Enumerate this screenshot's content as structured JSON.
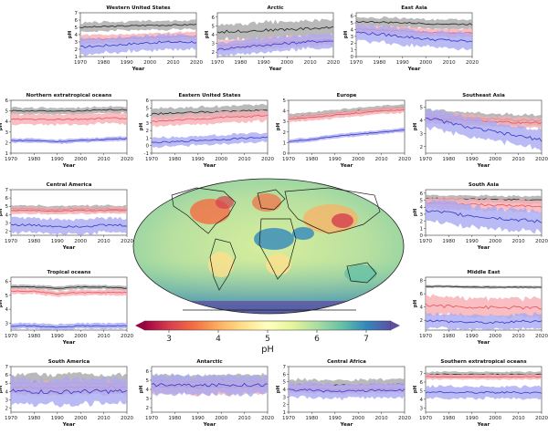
{
  "colors": {
    "black_line": "#222222",
    "black_band": "#a8a8a8",
    "red_line": "#e8505b",
    "red_band": "#f6aeb2",
    "blue_line": "#3535c8",
    "blue_band": "#a9a9f2"
  },
  "map": {
    "colorbar_label": "pH",
    "colorbar_ticks": [
      "3",
      "4",
      "5",
      "6",
      "7"
    ],
    "colorbar_min": 2.5,
    "colorbar_max": 7.5,
    "colormap": "Spectral"
  },
  "chart_data": [
    {
      "type": "line",
      "title": "Western United States",
      "xlabel": "Year",
      "ylabel": "pH",
      "x_ticks": [
        "1970",
        "1980",
        "1990",
        "2000",
        "2010",
        "2020"
      ],
      "y_ticks": [
        "1",
        "2",
        "3",
        "4",
        "5",
        "6",
        "7"
      ],
      "ylim": [
        1,
        7
      ],
      "xlim": [
        1970,
        2020
      ],
      "series": [
        {
          "style": "black",
          "values": [
            5.0,
            5.1,
            5.2,
            5.3,
            5.3,
            5.4
          ],
          "band": 0.6
        },
        {
          "style": "red",
          "values": [
            3.3,
            3.4,
            3.5,
            3.6,
            3.7,
            3.8
          ],
          "band": 0.6
        },
        {
          "style": "blue",
          "values": [
            2.3,
            2.5,
            2.7,
            2.9,
            3.0,
            3.0
          ],
          "band": 1.0
        }
      ]
    },
    {
      "type": "line",
      "title": "Arctic",
      "xlabel": "Year",
      "ylabel": "pH",
      "x_ticks": [
        "1970",
        "1980",
        "1990",
        "2000",
        "2010",
        "2020"
      ],
      "y_ticks": [
        "2",
        "3",
        "4",
        "5",
        "6"
      ],
      "ylim": [
        1.5,
        6.5
      ],
      "xlim": [
        1970,
        2020
      ],
      "series": [
        {
          "style": "black",
          "values": [
            4.3,
            4.4,
            4.5,
            4.6,
            4.7,
            4.8
          ],
          "band": 0.9
        },
        {
          "style": "red",
          "values": [
            2.7,
            2.9,
            3.0,
            3.2,
            3.3,
            3.4
          ],
          "band": 0.6
        },
        {
          "style": "blue",
          "values": [
            2.3,
            2.6,
            2.8,
            3.0,
            3.2,
            3.3
          ],
          "band": 0.8
        }
      ]
    },
    {
      "type": "line",
      "title": "East Asia",
      "xlabel": "Year",
      "ylabel": "pH",
      "x_ticks": [
        "1970",
        "1980",
        "1990",
        "2000",
        "2010",
        "2020"
      ],
      "y_ticks": [
        "0",
        "1",
        "2",
        "3",
        "4",
        "5",
        "6"
      ],
      "ylim": [
        0,
        6.5
      ],
      "xlim": [
        1970,
        2020
      ],
      "series": [
        {
          "style": "black",
          "values": [
            5.2,
            5.1,
            5.0,
            4.9,
            4.8,
            4.8
          ],
          "band": 0.7
        },
        {
          "style": "red",
          "values": [
            4.1,
            3.9,
            3.8,
            3.6,
            3.5,
            3.5
          ],
          "band": 0.6
        },
        {
          "style": "blue",
          "values": [
            3.6,
            3.3,
            3.0,
            2.6,
            2.4,
            2.2
          ],
          "band": 1.2
        }
      ]
    },
    {
      "type": "line",
      "title": "Northern extratropical oceans",
      "xlabel": "Year",
      "ylabel": "pH",
      "x_ticks": [
        "1970",
        "1980",
        "1990",
        "2000",
        "2010",
        "2020"
      ],
      "y_ticks": [
        "1",
        "2",
        "3",
        "4",
        "5",
        "6"
      ],
      "ylim": [
        1,
        6
      ],
      "xlim": [
        1970,
        2020
      ],
      "series": [
        {
          "style": "black",
          "values": [
            5.0,
            5.0,
            5.0,
            5.0,
            5.1,
            5.1
          ],
          "band": 0.3
        },
        {
          "style": "red",
          "values": [
            4.2,
            4.2,
            4.2,
            4.2,
            4.3,
            4.3
          ],
          "band": 0.5
        },
        {
          "style": "blue",
          "values": [
            2.2,
            2.2,
            2.1,
            2.2,
            2.3,
            2.4
          ],
          "band": 0.2
        }
      ]
    },
    {
      "type": "line",
      "title": "Eastern United States",
      "xlabel": "Year",
      "ylabel": "pH",
      "x_ticks": [
        "1970",
        "1980",
        "1990",
        "2000",
        "2010",
        "2020"
      ],
      "y_ticks": [
        "-1",
        "0",
        "1",
        "2",
        "3",
        "4",
        "5",
        "6"
      ],
      "ylim": [
        -1,
        6
      ],
      "xlim": [
        1970,
        2020
      ],
      "series": [
        {
          "style": "black",
          "values": [
            4.2,
            4.3,
            4.4,
            4.5,
            4.6,
            4.7
          ],
          "band": 0.7
        },
        {
          "style": "red",
          "values": [
            3.2,
            3.4,
            3.5,
            3.7,
            3.8,
            4.0
          ],
          "band": 0.7
        },
        {
          "style": "blue",
          "values": [
            0.4,
            0.5,
            0.7,
            0.8,
            1.0,
            1.1
          ],
          "band": 0.6
        }
      ]
    },
    {
      "type": "line",
      "title": "Europe",
      "xlabel": "Year",
      "ylabel": "pH",
      "x_ticks": [
        "1970",
        "1980",
        "1990",
        "2000",
        "2010",
        "2020"
      ],
      "y_ticks": [
        "0",
        "1",
        "2",
        "3",
        "4",
        "5"
      ],
      "ylim": [
        0,
        5
      ],
      "xlim": [
        1970,
        2020
      ],
      "series": [
        {
          "style": "black",
          "values": [
            3.4,
            3.6,
            3.8,
            4.0,
            4.2,
            4.3
          ],
          "band": 0.3
        },
        {
          "style": "red",
          "values": [
            3.2,
            3.4,
            3.6,
            3.8,
            4.0,
            4.1
          ],
          "band": 0.3
        },
        {
          "style": "blue",
          "values": [
            1.1,
            1.3,
            1.6,
            1.8,
            2.0,
            2.2
          ],
          "band": 0.2
        }
      ]
    },
    {
      "type": "line",
      "title": "Southeast Asia",
      "xlabel": "Year",
      "ylabel": "pH",
      "x_ticks": [
        "1970",
        "1980",
        "1990",
        "2000",
        "2010",
        "2020"
      ],
      "y_ticks": [
        "2",
        "3",
        "4",
        "5"
      ],
      "ylim": [
        1.5,
        5.5
      ],
      "xlim": [
        1970,
        2020
      ],
      "series": [
        {
          "style": "black",
          "values": [
            4.4,
            4.3,
            4.2,
            4.1,
            4.0,
            4.0
          ],
          "band": 0.4
        },
        {
          "style": "red",
          "values": [
            4.2,
            4.1,
            4.0,
            3.9,
            3.8,
            3.8
          ],
          "band": 0.4
        },
        {
          "style": "blue",
          "values": [
            4.2,
            3.8,
            3.4,
            3.1,
            2.8,
            2.5
          ],
          "band": 0.7
        }
      ]
    },
    {
      "type": "line",
      "title": "Central America",
      "xlabel": "Year",
      "ylabel": "pH",
      "x_ticks": [
        "1970",
        "1980",
        "1990",
        "2000",
        "2010",
        "2020"
      ],
      "y_ticks": [
        "2",
        "3",
        "4",
        "5",
        "6",
        "7"
      ],
      "ylim": [
        1.5,
        7
      ],
      "xlim": [
        1970,
        2020
      ],
      "series": [
        {
          "style": "black",
          "values": [
            4.7,
            4.7,
            4.6,
            4.7,
            4.7,
            4.7
          ],
          "band": 0.4
        },
        {
          "style": "red",
          "values": [
            4.5,
            4.5,
            4.4,
            4.5,
            4.5,
            4.5
          ],
          "band": 0.4
        },
        {
          "style": "blue",
          "values": [
            2.8,
            2.7,
            2.6,
            2.6,
            2.7,
            2.7
          ],
          "band": 0.9
        }
      ]
    },
    {
      "type": "line",
      "title": "South Asia",
      "xlabel": "Year",
      "ylabel": "pH",
      "x_ticks": [
        "1970",
        "1980",
        "1990",
        "2000",
        "2010",
        "2020"
      ],
      "y_ticks": [
        "0",
        "1",
        "2",
        "3",
        "4",
        "5",
        "6"
      ],
      "ylim": [
        0,
        6.5
      ],
      "xlim": [
        1970,
        2020
      ],
      "series": [
        {
          "style": "black",
          "values": [
            5.3,
            5.2,
            5.2,
            5.1,
            5.1,
            5.0
          ],
          "band": 0.5
        },
        {
          "style": "red",
          "values": [
            4.6,
            4.5,
            4.4,
            4.3,
            4.2,
            4.1
          ],
          "band": 0.8
        },
        {
          "style": "blue",
          "values": [
            3.5,
            3.2,
            2.8,
            2.5,
            2.2,
            1.9
          ],
          "band": 1.5
        }
      ]
    },
    {
      "type": "line",
      "title": "Tropical oceans",
      "xlabel": "Year",
      "ylabel": "pH",
      "x_ticks": [
        "1970",
        "1980",
        "1990",
        "2000",
        "2010",
        "2020"
      ],
      "y_ticks": [
        "3",
        "4",
        "5",
        "6"
      ],
      "ylim": [
        2.5,
        6.3
      ],
      "xlim": [
        1970,
        2020
      ],
      "series": [
        {
          "style": "black",
          "values": [
            5.6,
            5.6,
            5.5,
            5.6,
            5.6,
            5.5
          ],
          "band": 0.15
        },
        {
          "style": "red",
          "values": [
            5.3,
            5.3,
            5.1,
            5.2,
            5.2,
            5.2
          ],
          "band": 0.2
        },
        {
          "style": "blue",
          "values": [
            2.8,
            2.8,
            2.7,
            2.8,
            2.8,
            2.8
          ],
          "band": 0.2
        }
      ]
    },
    {
      "type": "line",
      "title": "Middle East",
      "xlabel": "Year",
      "ylabel": "pH",
      "x_ticks": [
        "1970",
        "1980",
        "1990",
        "2000",
        "2010",
        "2020"
      ],
      "y_ticks": [
        "2",
        "4",
        "6",
        "8"
      ],
      "ylim": [
        0.5,
        8.5
      ],
      "xlim": [
        1970,
        2020
      ],
      "series": [
        {
          "style": "black",
          "values": [
            7.1,
            7.1,
            7.0,
            7.0,
            7.0,
            7.0
          ],
          "band": 0.2
        },
        {
          "style": "red",
          "values": [
            4.3,
            4.1,
            4.0,
            3.9,
            3.9,
            3.8
          ],
          "band": 1.4
        },
        {
          "style": "blue",
          "values": [
            2.0,
            1.8,
            1.7,
            1.6,
            1.8,
            1.9
          ],
          "band": 1.1
        }
      ]
    },
    {
      "type": "line",
      "title": "South America",
      "xlabel": "Year",
      "ylabel": "pH",
      "x_ticks": [
        "1970",
        "1980",
        "1990",
        "2000",
        "2010",
        "2020"
      ],
      "y_ticks": [
        "2",
        "3",
        "4",
        "5",
        "6",
        "7"
      ],
      "ylim": [
        1.5,
        7
      ],
      "xlim": [
        1970,
        2020
      ],
      "series": [
        {
          "style": "black",
          "values": [
            5.0,
            5.0,
            4.9,
            5.0,
            5.0,
            5.0
          ],
          "band": 1.1
        },
        {
          "style": "red",
          "values": [
            4.5,
            4.5,
            4.4,
            4.5,
            4.5,
            4.5
          ],
          "band": 0.8
        },
        {
          "style": "blue",
          "values": [
            4.0,
            4.0,
            3.9,
            4.0,
            4.0,
            4.0
          ],
          "band": 1.5
        }
      ]
    },
    {
      "type": "line",
      "title": "Antarctic",
      "xlabel": "Year",
      "ylabel": "pH",
      "x_ticks": [
        "1970",
        "1980",
        "1990",
        "2000",
        "2010",
        "2020"
      ],
      "y_ticks": [
        "2",
        "3",
        "4",
        "5",
        "6"
      ],
      "ylim": [
        1.5,
        6.5
      ],
      "xlim": [
        1970,
        2020
      ],
      "series": [
        {
          "style": "black",
          "values": [
            4.9,
            4.9,
            4.8,
            4.9,
            4.9,
            4.9
          ],
          "band": 0.7
        },
        {
          "style": "red",
          "values": [
            4.3,
            4.3,
            4.2,
            4.3,
            4.3,
            4.3
          ],
          "band": 0.8
        },
        {
          "style": "blue",
          "values": [
            4.5,
            4.5,
            4.4,
            4.5,
            4.5,
            4.5
          ],
          "band": 1.0
        }
      ]
    },
    {
      "type": "line",
      "title": "Central Africa",
      "xlabel": "Year",
      "ylabel": "pH",
      "x_ticks": [
        "1970",
        "1980",
        "1990",
        "2000",
        "2010",
        "2020"
      ],
      "y_ticks": [
        "1",
        "2",
        "3",
        "4",
        "5",
        "6",
        "7"
      ],
      "ylim": [
        1,
        7
      ],
      "xlim": [
        1970,
        2020
      ],
      "series": [
        {
          "style": "black",
          "values": [
            4.6,
            4.6,
            4.5,
            4.6,
            4.6,
            4.7
          ],
          "band": 0.7
        },
        {
          "style": "red",
          "values": [
            4.1,
            4.1,
            4.0,
            4.0,
            4.1,
            4.1
          ],
          "band": 0.6
        },
        {
          "style": "blue",
          "values": [
            3.9,
            3.9,
            3.7,
            3.8,
            3.9,
            3.9
          ],
          "band": 0.9
        }
      ]
    },
    {
      "type": "line",
      "title": "Southern extratropical oceans",
      "xlabel": "Year",
      "ylabel": "pH",
      "x_ticks": [
        "1970",
        "1980",
        "1990",
        "2000",
        "2010",
        "2020"
      ],
      "y_ticks": [
        "3",
        "4",
        "5",
        "6",
        "7"
      ],
      "ylim": [
        2.5,
        7.8
      ],
      "xlim": [
        1970,
        2020
      ],
      "series": [
        {
          "style": "black",
          "values": [
            6.9,
            6.9,
            6.9,
            6.9,
            6.9,
            6.9
          ],
          "band": 0.3
        },
        {
          "style": "red",
          "values": [
            6.6,
            6.6,
            6.6,
            6.6,
            6.6,
            6.6
          ],
          "band": 0.3
        },
        {
          "style": "blue",
          "values": [
            4.8,
            4.8,
            4.8,
            4.8,
            4.8,
            4.8
          ],
          "band": 0.7
        }
      ]
    }
  ]
}
